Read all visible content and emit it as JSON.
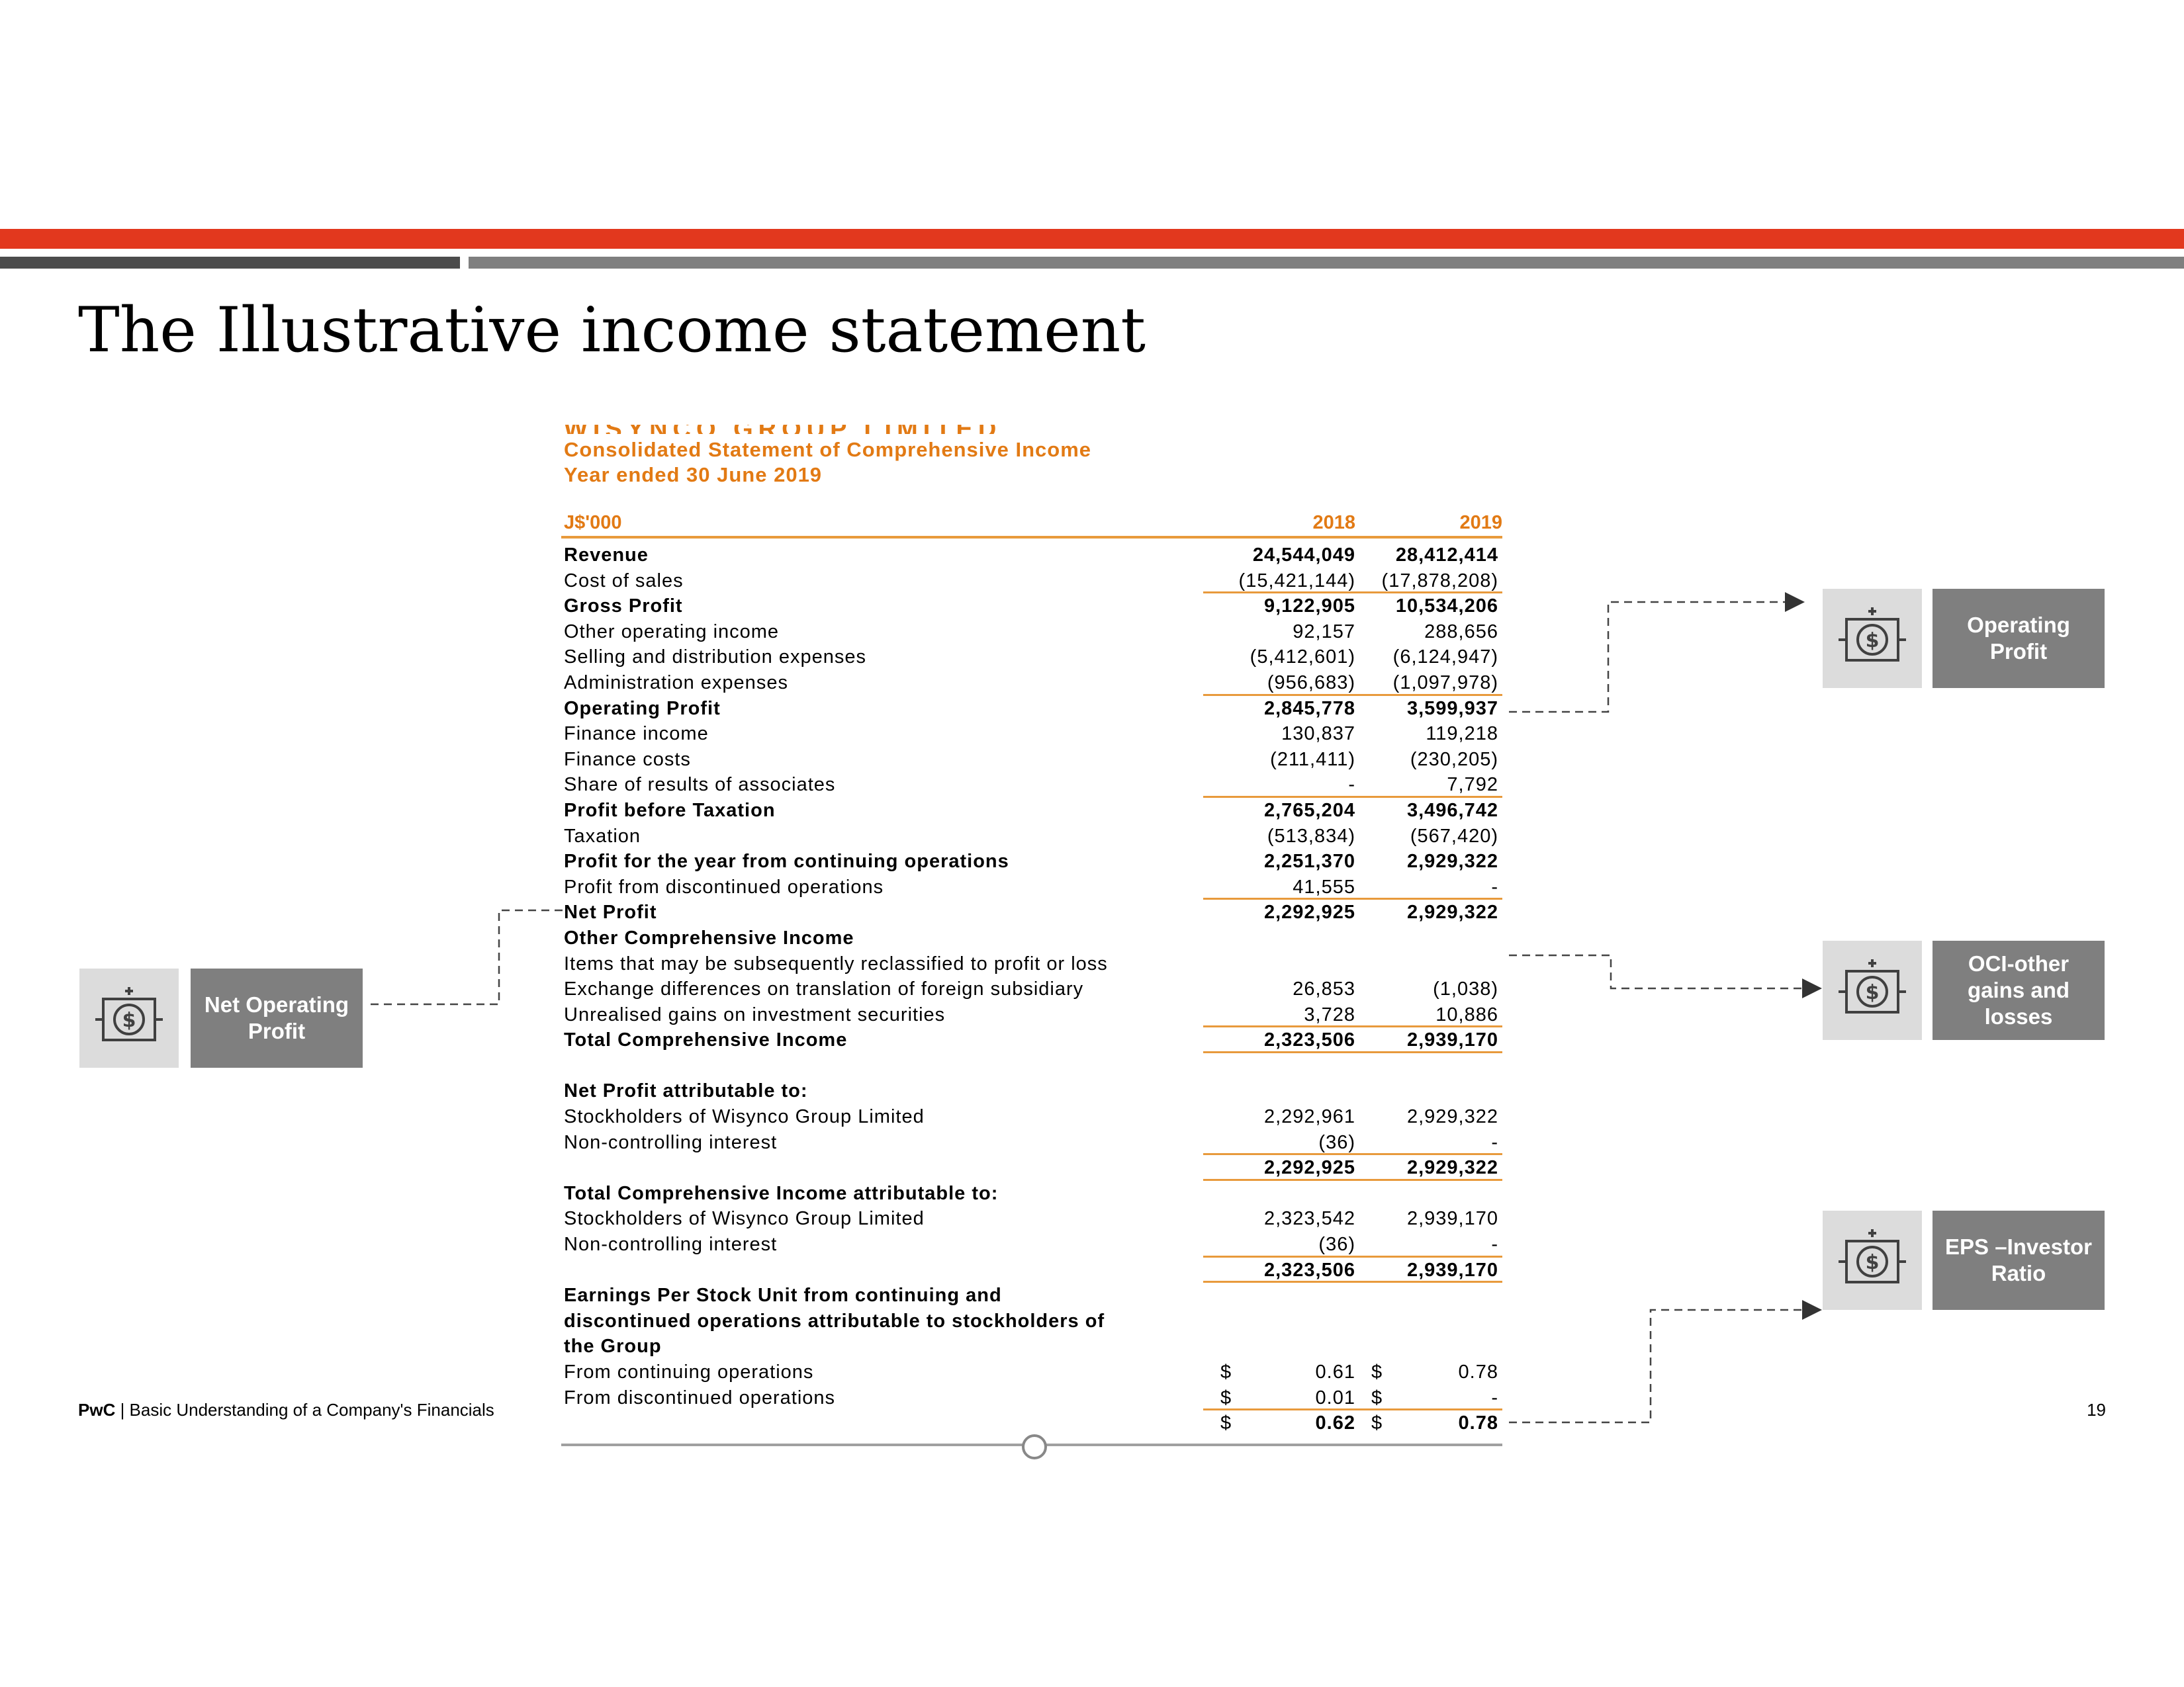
{
  "slide": {
    "title": "The Illustrative income statement",
    "page_number": "19",
    "footer_brand": "PwC",
    "footer_separator": " | ",
    "footer_text": "Basic Understanding of a Company's Financials"
  },
  "statement": {
    "company_name": "WISYNCO GROUP LIMITED",
    "title": "Consolidated Statement of Comprehensive Income",
    "period": "Year ended 30 June 2019",
    "unit": "J$'000",
    "year_1": "2018",
    "year_2": "2019",
    "rows": [
      {
        "label": "Revenue",
        "v1": "24,544,049",
        "v2": "28,412,414",
        "bold": true
      },
      {
        "label": "Cost of sales",
        "v1": "(15,421,144)",
        "v2": "(17,878,208)",
        "underline": true
      },
      {
        "label": "Gross Profit",
        "v1": "9,122,905",
        "v2": "10,534,206",
        "bold": true
      },
      {
        "label": "Other operating income",
        "v1": "92,157",
        "v2": "288,656"
      },
      {
        "label": "Selling and distribution expenses",
        "v1": "(5,412,601)",
        "v2": "(6,124,947)"
      },
      {
        "label": "Administration expenses",
        "v1": "(956,683)",
        "v2": "(1,097,978)",
        "underline": true
      },
      {
        "label": "Operating Profit",
        "v1": "2,845,778",
        "v2": "3,599,937",
        "bold": true
      },
      {
        "label": "Finance income",
        "v1": "130,837",
        "v2": "119,218"
      },
      {
        "label": "Finance costs",
        "v1": "(211,411)",
        "v2": "(230,205)"
      },
      {
        "label": "Share of results of associates",
        "v1": "-",
        "v2": "7,792",
        "underline": true
      },
      {
        "label": "Profit before Taxation",
        "v1": "2,765,204",
        "v2": "3,496,742",
        "bold": true
      },
      {
        "label": "Taxation",
        "v1": "(513,834)",
        "v2": "(567,420)"
      },
      {
        "label": "Profit for the year from continuing operations",
        "v1": "2,251,370",
        "v2": "2,929,322",
        "bold": true
      },
      {
        "label": "Profit from discontinued operations",
        "v1": "41,555",
        "v2": "-",
        "underline": true
      },
      {
        "label": "Net Profit",
        "v1": "2,292,925",
        "v2": "2,929,322",
        "bold": true
      },
      {
        "label": "Other Comprehensive Income",
        "v1": "",
        "v2": "",
        "bold": true
      },
      {
        "label": "Items that may be subsequently reclassified to profit or loss",
        "v1": "",
        "v2": ""
      },
      {
        "label": "Exchange differences on translation of foreign subsidiary",
        "v1": "26,853",
        "v2": "(1,038)"
      },
      {
        "label": "Unrealised gains on investment securities",
        "v1": "3,728",
        "v2": "10,886",
        "underline": true
      },
      {
        "label": "Total Comprehensive Income",
        "v1": "2,323,506",
        "v2": "2,939,170",
        "bold": true,
        "underline": true
      },
      {
        "label": "",
        "v1": "",
        "v2": "",
        "gap": true
      },
      {
        "label": "Net Profit attributable to:",
        "v1": "",
        "v2": "",
        "bold": true
      },
      {
        "label": "Stockholders of Wisynco Group Limited",
        "v1": "2,292,961",
        "v2": "2,929,322"
      },
      {
        "label": "Non-controlling interest",
        "v1": "(36)",
        "v2": "-",
        "underline": true
      },
      {
        "label": "",
        "v1": "2,292,925",
        "v2": "2,929,322",
        "bold": true,
        "underline": true
      },
      {
        "label": "Total Comprehensive Income attributable to:",
        "v1": "",
        "v2": "",
        "bold": true
      },
      {
        "label": "Stockholders of Wisynco Group Limited",
        "v1": "2,323,542",
        "v2": "2,939,170"
      },
      {
        "label": "Non-controlling interest",
        "v1": "(36)",
        "v2": "-",
        "underline": true
      },
      {
        "label": "",
        "v1": "2,323,506",
        "v2": "2,939,170",
        "bold": true,
        "underline": true
      },
      {
        "label": "Earnings Per Stock Unit from continuing and",
        "v1": "",
        "v2": "",
        "bold": true
      },
      {
        "label": "discontinued operations attributable to stockholders of",
        "v1": "",
        "v2": "",
        "bold": true
      },
      {
        "label": "the Group",
        "v1": "",
        "v2": "",
        "bold": true
      },
      {
        "label": "From continuing operations",
        "cur": "$",
        "v1": "0.61",
        "v2": "0.78"
      },
      {
        "label": "From discontinued operations",
        "cur": "$",
        "v1": "0.01",
        "v2": "-",
        "underline": true
      },
      {
        "label": "",
        "cur": "$",
        "v1": "0.62",
        "v2": "0.78",
        "bold": true
      }
    ]
  },
  "callouts": {
    "net_operating_profit": "Net Operating\nProfit",
    "operating_profit": "Operating\nProfit",
    "oci": "OCI-other\ngains and\nlosses",
    "eps": "EPS –Investor\nRatio",
    "icon": "dollar-statement-icon"
  },
  "colors": {
    "red_bar": "#e2381e",
    "dark_bar": "#4c4c4c",
    "gray_bar": "#7f7f7f",
    "accent_orange": "#e27a14",
    "callout_gray": "#7f7f7f",
    "icon_bg": "#dcdcdc"
  }
}
